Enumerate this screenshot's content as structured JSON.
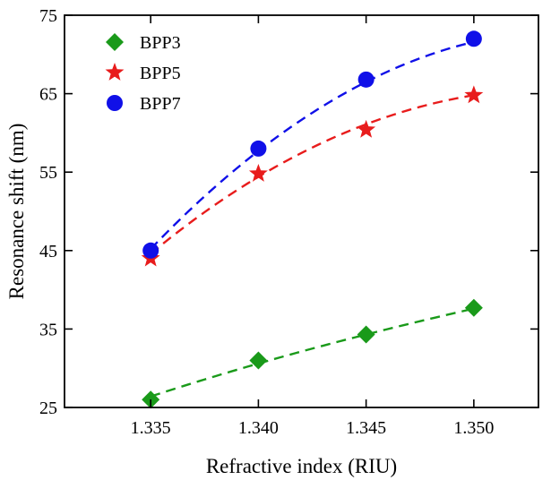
{
  "chart_data": {
    "type": "scatter",
    "title": "",
    "xlabel": "Refractive index (RIU)",
    "ylabel": "Resonance shift (nm)",
    "xlim": [
      1.331,
      1.353
    ],
    "ylim": [
      25,
      75
    ],
    "xticks": [
      1.335,
      1.34,
      1.345,
      1.35
    ],
    "xtick_labels": [
      "1.335",
      "1.340",
      "1.345",
      "1.350"
    ],
    "yticks": [
      25,
      35,
      45,
      55,
      65,
      75
    ],
    "ytick_labels": [
      "25",
      "35",
      "45",
      "55",
      "65",
      "75"
    ],
    "grid": false,
    "legend_position": "top-left",
    "fit_lines": "dashed",
    "series": [
      {
        "name": "BPP3",
        "marker": "diamond",
        "color": "#1a9a1a",
        "x": [
          1.335,
          1.34,
          1.345,
          1.35
        ],
        "y": [
          26.0,
          31.0,
          34.3,
          37.7
        ],
        "fit": [
          26.4,
          30.6,
          34.3,
          37.6
        ]
      },
      {
        "name": "BPP5",
        "marker": "star",
        "color": "#e81c1c",
        "x": [
          1.335,
          1.34,
          1.345,
          1.35
        ],
        "y": [
          44.0,
          54.8,
          60.4,
          64.8
        ],
        "fit": [
          44.6,
          54.4,
          61.1,
          64.8
        ]
      },
      {
        "name": "BPP7",
        "marker": "circle",
        "color": "#1010e8",
        "x": [
          1.335,
          1.34,
          1.345,
          1.35
        ],
        "y": [
          45.0,
          58.0,
          66.8,
          72.0
        ],
        "fit": [
          45.2,
          57.7,
          66.5,
          71.6
        ]
      }
    ]
  }
}
